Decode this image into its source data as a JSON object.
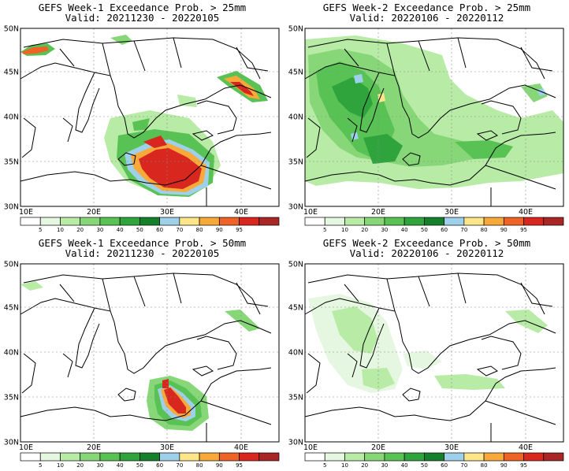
{
  "panels": [
    {
      "title": "GEFS Week-1 Exceedance Prob. > 25mm",
      "valid": "Valid: 20211230 - 20220105"
    },
    {
      "title": "GEFS Week-2 Exceedance Prob. > 25mm",
      "valid": "Valid: 20220106 - 20220112"
    },
    {
      "title": "GEFS Week-1 Exceedance Prob. > 50mm",
      "valid": "Valid: 20211230 - 20220105"
    },
    {
      "title": "GEFS Week-2 Exceedance Prob. > 50mm",
      "valid": "Valid: 20220106 - 20220112"
    }
  ],
  "axes": {
    "lat_labels": [
      "50N",
      "45N",
      "40N",
      "35N",
      "30N"
    ],
    "lon_labels": [
      "10E",
      "20E",
      "30E",
      "40E"
    ]
  },
  "colorbar": {
    "labels": [
      "5",
      "10",
      "20",
      "30",
      "40",
      "50",
      "60",
      "70",
      "80",
      "90",
      "95"
    ],
    "colors": [
      "#ffffff",
      "#e6f7e1",
      "#b8eba6",
      "#87d778",
      "#59c255",
      "#2fa43c",
      "#14802b",
      "#9fd0ea",
      "#fde58a",
      "#f8a93a",
      "#f06326",
      "#d7271f",
      "#aa2525"
    ]
  }
}
